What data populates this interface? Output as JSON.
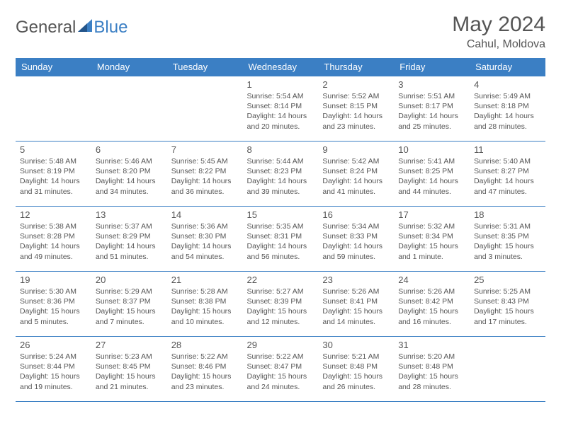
{
  "brand": {
    "part1": "General",
    "part2": "Blue"
  },
  "header": {
    "month": "May 2024",
    "location": "Cahul, Moldova"
  },
  "colors": {
    "brand_blue": "#3b7fc4",
    "text": "#555555",
    "background": "#ffffff"
  },
  "weekday_labels": [
    "Sunday",
    "Monday",
    "Tuesday",
    "Wednesday",
    "Thursday",
    "Friday",
    "Saturday"
  ],
  "weeks": [
    [
      null,
      null,
      null,
      {
        "n": "1",
        "sr": "5:54 AM",
        "ss": "8:14 PM",
        "dl": "14 hours and 20 minutes."
      },
      {
        "n": "2",
        "sr": "5:52 AM",
        "ss": "8:15 PM",
        "dl": "14 hours and 23 minutes."
      },
      {
        "n": "3",
        "sr": "5:51 AM",
        "ss": "8:17 PM",
        "dl": "14 hours and 25 minutes."
      },
      {
        "n": "4",
        "sr": "5:49 AM",
        "ss": "8:18 PM",
        "dl": "14 hours and 28 minutes."
      }
    ],
    [
      {
        "n": "5",
        "sr": "5:48 AM",
        "ss": "8:19 PM",
        "dl": "14 hours and 31 minutes."
      },
      {
        "n": "6",
        "sr": "5:46 AM",
        "ss": "8:20 PM",
        "dl": "14 hours and 34 minutes."
      },
      {
        "n": "7",
        "sr": "5:45 AM",
        "ss": "8:22 PM",
        "dl": "14 hours and 36 minutes."
      },
      {
        "n": "8",
        "sr": "5:44 AM",
        "ss": "8:23 PM",
        "dl": "14 hours and 39 minutes."
      },
      {
        "n": "9",
        "sr": "5:42 AM",
        "ss": "8:24 PM",
        "dl": "14 hours and 41 minutes."
      },
      {
        "n": "10",
        "sr": "5:41 AM",
        "ss": "8:25 PM",
        "dl": "14 hours and 44 minutes."
      },
      {
        "n": "11",
        "sr": "5:40 AM",
        "ss": "8:27 PM",
        "dl": "14 hours and 47 minutes."
      }
    ],
    [
      {
        "n": "12",
        "sr": "5:38 AM",
        "ss": "8:28 PM",
        "dl": "14 hours and 49 minutes."
      },
      {
        "n": "13",
        "sr": "5:37 AM",
        "ss": "8:29 PM",
        "dl": "14 hours and 51 minutes."
      },
      {
        "n": "14",
        "sr": "5:36 AM",
        "ss": "8:30 PM",
        "dl": "14 hours and 54 minutes."
      },
      {
        "n": "15",
        "sr": "5:35 AM",
        "ss": "8:31 PM",
        "dl": "14 hours and 56 minutes."
      },
      {
        "n": "16",
        "sr": "5:34 AM",
        "ss": "8:33 PM",
        "dl": "14 hours and 59 minutes."
      },
      {
        "n": "17",
        "sr": "5:32 AM",
        "ss": "8:34 PM",
        "dl": "15 hours and 1 minute."
      },
      {
        "n": "18",
        "sr": "5:31 AM",
        "ss": "8:35 PM",
        "dl": "15 hours and 3 minutes."
      }
    ],
    [
      {
        "n": "19",
        "sr": "5:30 AM",
        "ss": "8:36 PM",
        "dl": "15 hours and 5 minutes."
      },
      {
        "n": "20",
        "sr": "5:29 AM",
        "ss": "8:37 PM",
        "dl": "15 hours and 7 minutes."
      },
      {
        "n": "21",
        "sr": "5:28 AM",
        "ss": "8:38 PM",
        "dl": "15 hours and 10 minutes."
      },
      {
        "n": "22",
        "sr": "5:27 AM",
        "ss": "8:39 PM",
        "dl": "15 hours and 12 minutes."
      },
      {
        "n": "23",
        "sr": "5:26 AM",
        "ss": "8:41 PM",
        "dl": "15 hours and 14 minutes."
      },
      {
        "n": "24",
        "sr": "5:26 AM",
        "ss": "8:42 PM",
        "dl": "15 hours and 16 minutes."
      },
      {
        "n": "25",
        "sr": "5:25 AM",
        "ss": "8:43 PM",
        "dl": "15 hours and 17 minutes."
      }
    ],
    [
      {
        "n": "26",
        "sr": "5:24 AM",
        "ss": "8:44 PM",
        "dl": "15 hours and 19 minutes."
      },
      {
        "n": "27",
        "sr": "5:23 AM",
        "ss": "8:45 PM",
        "dl": "15 hours and 21 minutes."
      },
      {
        "n": "28",
        "sr": "5:22 AM",
        "ss": "8:46 PM",
        "dl": "15 hours and 23 minutes."
      },
      {
        "n": "29",
        "sr": "5:22 AM",
        "ss": "8:47 PM",
        "dl": "15 hours and 24 minutes."
      },
      {
        "n": "30",
        "sr": "5:21 AM",
        "ss": "8:48 PM",
        "dl": "15 hours and 26 minutes."
      },
      {
        "n": "31",
        "sr": "5:20 AM",
        "ss": "8:48 PM",
        "dl": "15 hours and 28 minutes."
      },
      null
    ]
  ],
  "labels": {
    "sunrise": "Sunrise:",
    "sunset": "Sunset:",
    "daylight": "Daylight:"
  }
}
